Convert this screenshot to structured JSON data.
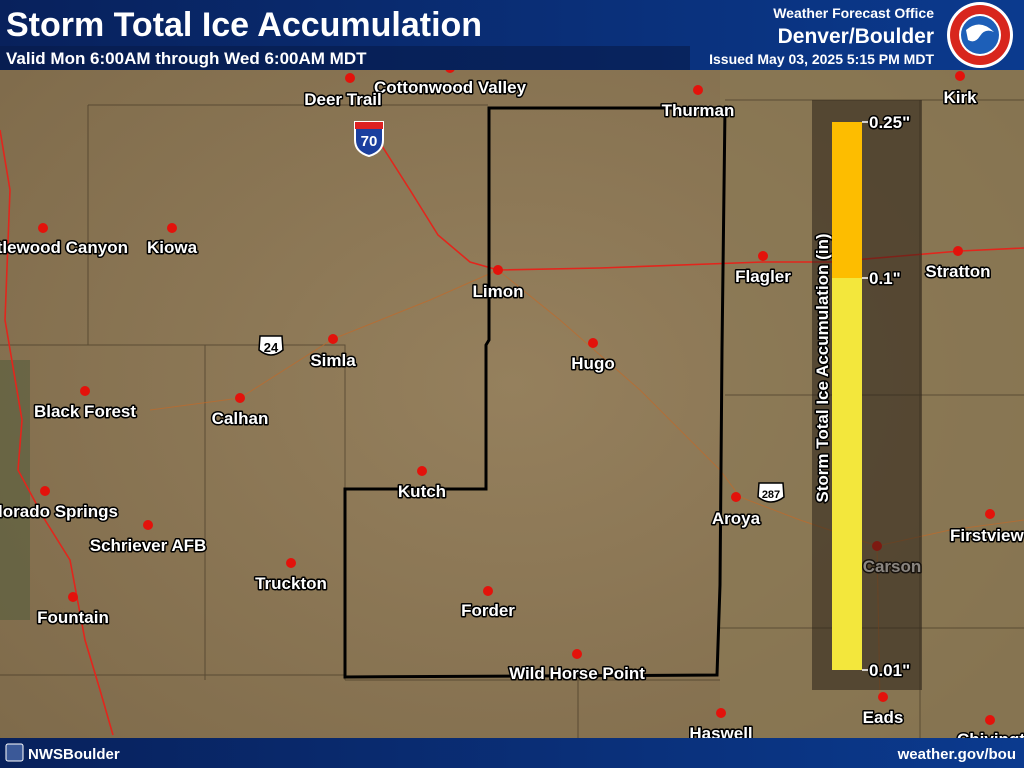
{
  "header": {
    "title": "Storm Total Ice Accumulation",
    "subtitle": "Valid Mon 6:00AM through Wed 6:00AM MDT",
    "office_line1": "Weather Forecast Office",
    "office_line2": "Denver/Boulder",
    "issued": "Issued May 03, 2025 5:15 PM MDT"
  },
  "footer": {
    "social": "NWSBoulder",
    "url": "weather.gov/bou"
  },
  "legend": {
    "title": "Storm Total Ice Accumulation (in)",
    "ticks": [
      {
        "value": 0.25,
        "label": "0.25\""
      },
      {
        "value": 0.1,
        "label": "0.1\""
      },
      {
        "value": 0.01,
        "label": "0.01\""
      }
    ],
    "colors": [
      "#fdbd00",
      "#f3e73c"
    ]
  },
  "shields": [
    "70",
    "24",
    "287"
  ],
  "places": [
    "Cottonwood Valley",
    "Deer Trail",
    "Thurman",
    "Kirk",
    "Kiowa",
    "Castlewood Canyon",
    "Limon",
    "Flagler",
    "Stratton",
    "Simla",
    "Hugo",
    "Black Forest",
    "Calhan",
    "Kutch",
    "Colorado Springs",
    "Schriever AFB",
    "Aroya",
    "Firstview",
    "Carson",
    "Truckton",
    "Fountain",
    "Forder",
    "Wild Horse Point",
    "Eads",
    "Haswell",
    "Chivington"
  ]
}
